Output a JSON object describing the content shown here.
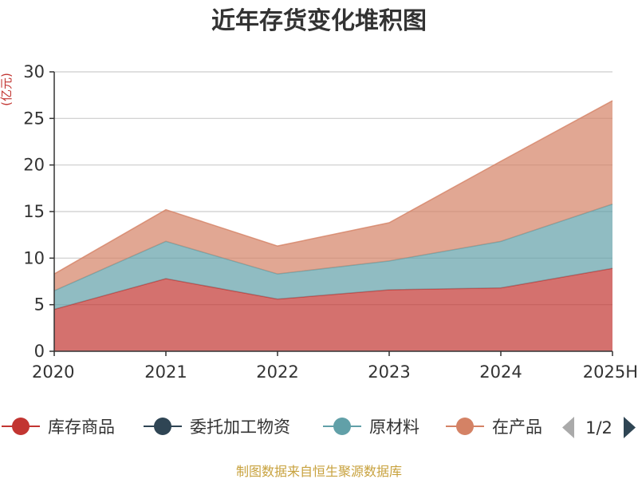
{
  "chart_data": {
    "type": "area",
    "stacked": true,
    "title": "近年存货变化堆积图",
    "ylabel": "(亿元)",
    "xlabel": "",
    "categories": [
      "2020",
      "2021",
      "2022",
      "2023",
      "2024",
      "2025H"
    ],
    "ylim": [
      0,
      30
    ],
    "yticks": [
      0,
      5,
      10,
      15,
      20,
      25,
      30
    ],
    "grid": true,
    "legend_position": "bottom",
    "series": [
      {
        "name": "库存商品",
        "values": [
          4.5,
          7.8,
          5.6,
          6.6,
          6.8,
          8.9
        ],
        "color": "#c23531"
      },
      {
        "name": "委托加工物资",
        "values": [
          0,
          0,
          0,
          0,
          0,
          0
        ],
        "color": "#2f4554"
      },
      {
        "name": "原材料",
        "values": [
          2.0,
          4.0,
          2.7,
          3.1,
          5.0,
          6.9
        ],
        "color": "#61a0a8"
      },
      {
        "name": "在产品",
        "values": [
          1.8,
          3.4,
          3.0,
          4.1,
          8.6,
          11.1
        ],
        "color": "#d48265"
      }
    ]
  },
  "legend": {
    "items": [
      "库存商品",
      "委托加工物资",
      "原材料",
      "在产品"
    ],
    "page_indicator": "1/2"
  },
  "source_text": "制图数据来自恒生聚源数据库",
  "colors": {
    "axis": "#333333",
    "grid": "#cccccc",
    "pager_disabled": "#aaaaaa",
    "pager_active": "#2f4554"
  },
  "icons": {
    "legend_marker": "circle-with-line",
    "pager_prev": "triangle-left-icon",
    "pager_next": "triangle-right-icon"
  }
}
